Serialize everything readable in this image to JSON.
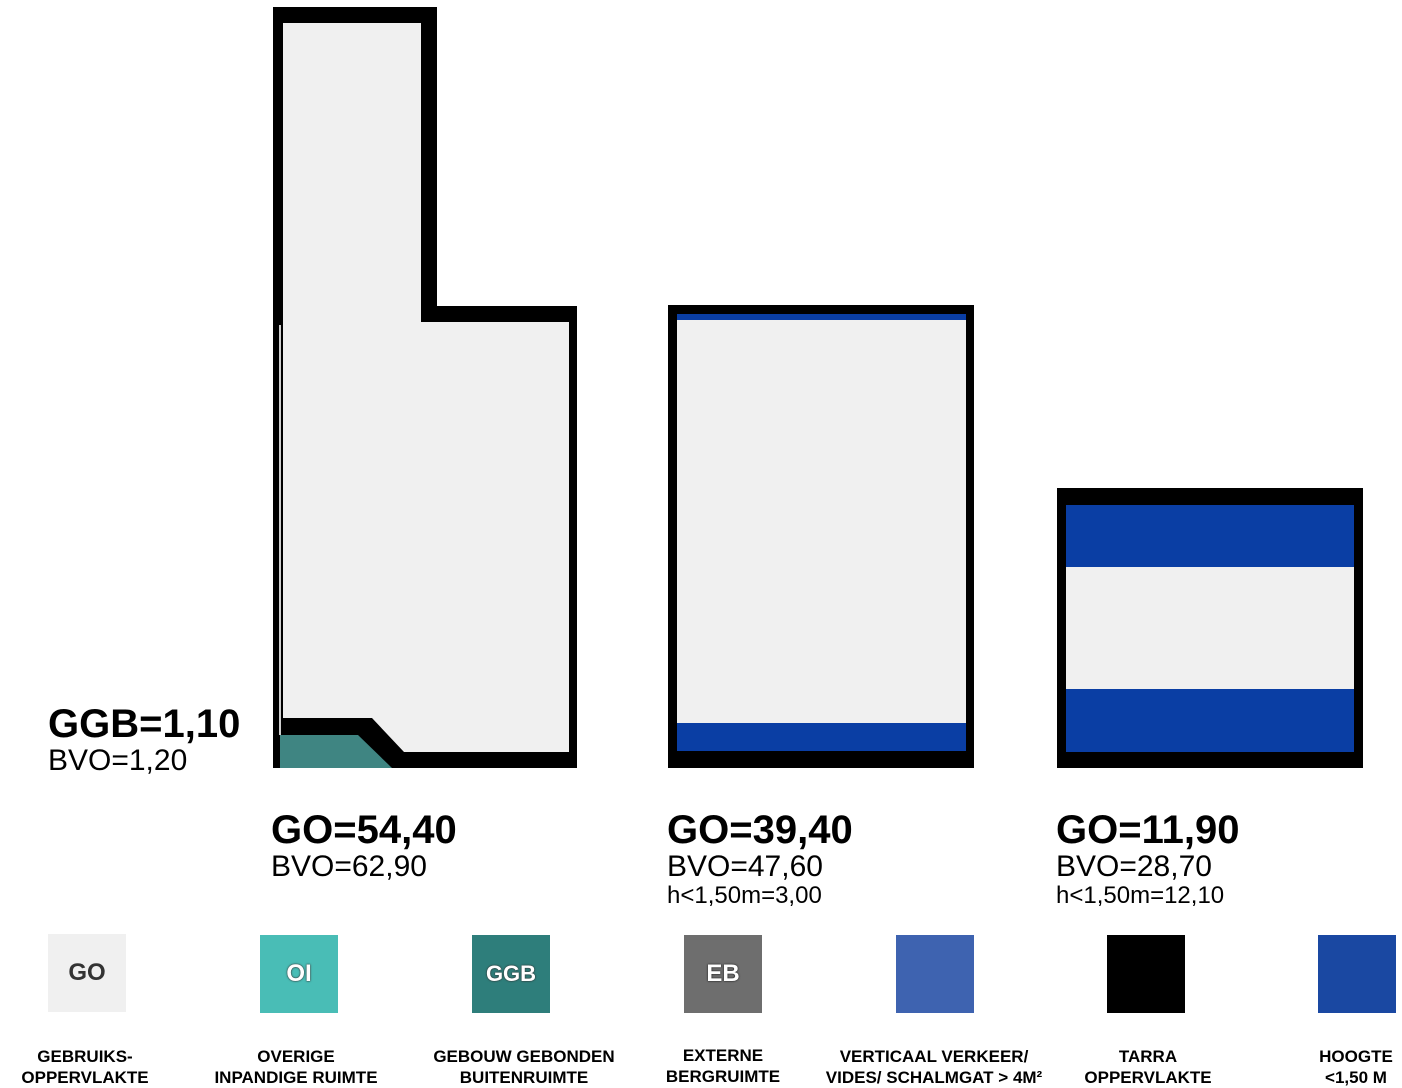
{
  "colors": {
    "go": "#f0f0f0",
    "oi": "#49bdb6",
    "ggb": "#2e7e7b",
    "eb": "#6e6e6e",
    "verkeer": "#3e63b0",
    "tarra": "#000000",
    "hoogte": "#1a48a2",
    "blue_band": "#0a3ea4",
    "ggb_fill": "#3f8582"
  },
  "labels": {
    "ggb": {
      "main": "GGB=1,10",
      "sub": "BVO=1,20"
    },
    "room1": {
      "main": "GO=54,40",
      "sub": "BVO=62,90"
    },
    "room2": {
      "main": "GO=39,40",
      "sub": "BVO=47,60",
      "sub2": "h<1,50m=3,00"
    },
    "room3": {
      "main": "GO=11,90",
      "sub": "BVO=28,70",
      "sub2": "h<1,50m=12,10"
    }
  },
  "legend": [
    {
      "code": "GO",
      "line1": "GEBRUIKS-",
      "line2": "OPPERVLAKTE",
      "icon": "go-swatch"
    },
    {
      "code": "OI",
      "line1": "OVERIGE",
      "line2": "INPANDIGE RUIMTE",
      "icon": "oi-swatch"
    },
    {
      "code": "GGB",
      "line1": "GEBOUW GEBONDEN",
      "line2": "BUITENRUIMTE",
      "icon": "ggb-swatch"
    },
    {
      "code": "EB",
      "line1": "EXTERNE",
      "line2": "BERGRUIMTE",
      "icon": "eb-swatch"
    },
    {
      "code": "",
      "line1": "VERTICAAL VERKEER/",
      "line2": "VIDES/ SCHALMGAT > 4M²",
      "icon": "verkeer-swatch"
    },
    {
      "code": "",
      "line1": "TARRA",
      "line2": "OPPERVLAKTE",
      "icon": "tarra-swatch"
    },
    {
      "code": "",
      "line1": "HOOGTE",
      "line2": "<1,50 M",
      "icon": "hoogte-swatch"
    }
  ]
}
